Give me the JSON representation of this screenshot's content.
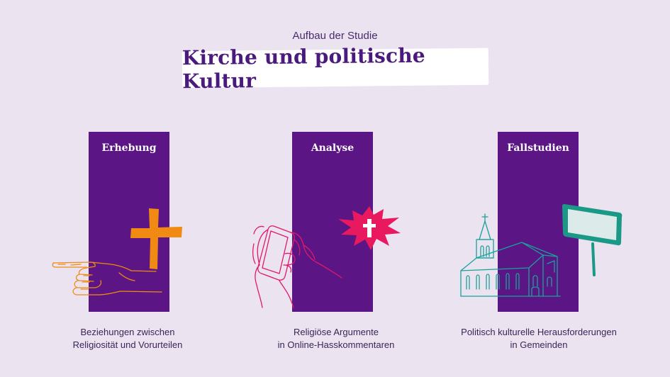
{
  "header": {
    "subtitle": "Aufbau der Studie",
    "title": "Kirche und politische Kultur"
  },
  "colors": {
    "background": "#ece3f1",
    "pillar": "#5b1585",
    "title_text": "#4b1a7d",
    "cross_orange": "#f08a12",
    "burst_pink": "#e8195e",
    "church_teal": "#17a39a",
    "sign_green": "#1a9a86"
  },
  "columns": [
    {
      "label": "Erhebung",
      "caption_line1": "Beziehungen zwischen",
      "caption_line2": "Religiosität und Vorurteilen",
      "icons": [
        "cross-icon",
        "pointing-hand-icon"
      ]
    },
    {
      "label": "Analyse",
      "caption_line1": "Religiöse Argumente",
      "caption_line2": "in Online-Hasskommentaren",
      "icons": [
        "smartphone-hands-icon",
        "starburst-cross-icon"
      ]
    },
    {
      "label": "Fallstudien",
      "caption_line1": "Politisch kulturelle Herausforderungen",
      "caption_line2": "in Gemeinden",
      "icons": [
        "church-icon",
        "town-sign-icon"
      ]
    }
  ]
}
